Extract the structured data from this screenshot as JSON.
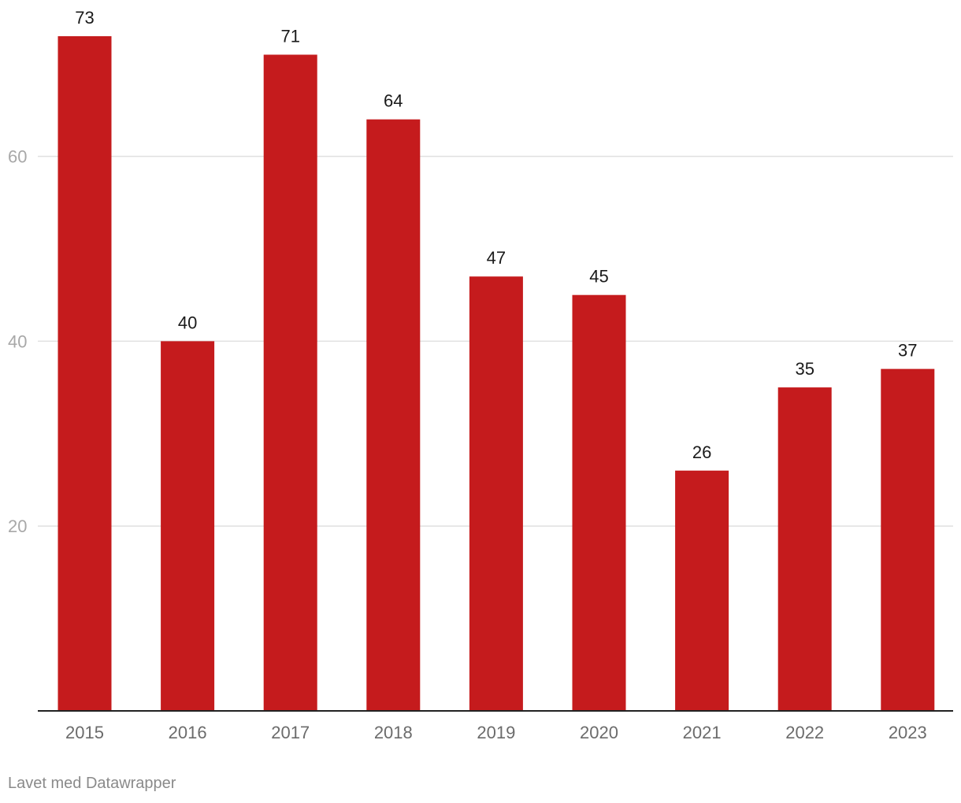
{
  "chart_data": {
    "type": "bar",
    "categories": [
      "2015",
      "2016",
      "2017",
      "2018",
      "2019",
      "2020",
      "2021",
      "2022",
      "2023"
    ],
    "values": [
      73,
      40,
      71,
      64,
      47,
      45,
      26,
      35,
      37
    ],
    "data_labels": [
      "73",
      "40",
      "71",
      "64",
      "47",
      "45",
      "26",
      "35",
      "37"
    ],
    "title": "",
    "xlabel": "",
    "ylabel": "",
    "ylim": [
      0,
      75
    ],
    "yticks": [
      20,
      40,
      60
    ],
    "ytick_labels": [
      "20",
      "40",
      "60"
    ],
    "grid": true,
    "bar_color": "#c51b1d"
  },
  "footer": {
    "credit": "Lavet med Datawrapper"
  }
}
